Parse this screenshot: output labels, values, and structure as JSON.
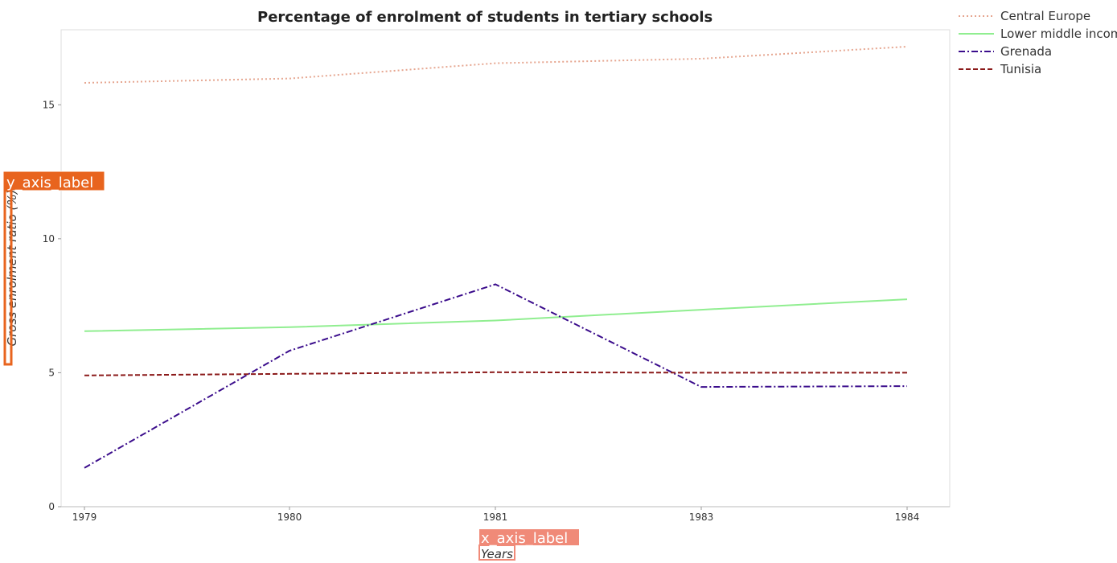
{
  "chart_data": {
    "type": "line",
    "title": "Percentage of enrolment of students in tertiary schools",
    "xlabel": "Years",
    "ylabel": "Gross enrolment ratio (%)",
    "x": [
      "1979",
      "1980",
      "1981",
      "1983",
      "1984"
    ],
    "y_ticks": [
      "0",
      "5",
      "10",
      "15"
    ],
    "ylim": [
      0,
      17.8
    ],
    "grid": false,
    "legend_position": "top-right",
    "series": [
      {
        "name": "Central Europe",
        "color": "#e6a690",
        "style": "dotted",
        "values": [
          15.82,
          15.98,
          16.55,
          16.72,
          17.17
        ]
      },
      {
        "name": "Lower middle income",
        "color": "#90ee90",
        "style": "solid",
        "values": [
          6.55,
          6.7,
          6.95,
          7.35,
          7.74
        ]
      },
      {
        "name": "Grenada",
        "color": "#3b0d8c",
        "style": "dash-dot",
        "values": [
          1.45,
          5.82,
          8.3,
          4.47,
          4.5
        ]
      },
      {
        "name": "Tunisia",
        "color": "#8b1a1a",
        "style": "dashed",
        "values": [
          4.9,
          4.96,
          5.02,
          5.0,
          5.0
        ]
      }
    ]
  },
  "overlay_tags": {
    "y_axis_tag": "y_axis_label",
    "x_axis_tag": "x_axis_label",
    "tag_color": "#e8641e",
    "x_tag_color": "#f08a78"
  }
}
